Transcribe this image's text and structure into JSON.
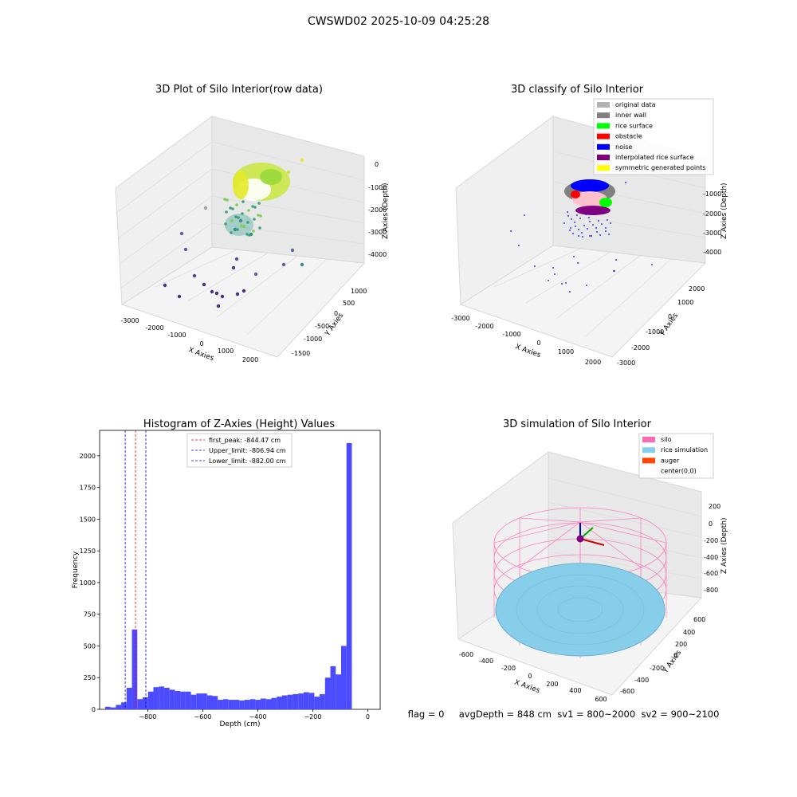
{
  "suptitle": "CWSWD02 2025-10-09 04:25:28",
  "status_line": "flag = 0     avgDepth = 848 cm  sv1 = 800~2000  sv2 = 900~2100",
  "chart_data": [
    {
      "type": "scatter3d",
      "title": "3D Plot of Silo Interior(row data)",
      "xlabel": "X Axies",
      "ylabel": "Y Axies",
      "zlabel": "Z Axies (Depth)",
      "xticks": [
        "-3000",
        "-2000",
        "-1000",
        "0",
        "1000",
        "2000"
      ],
      "yticks": [
        "-1500",
        "-1000",
        "-500",
        "0",
        "500",
        "1000"
      ],
      "zticks": [
        "0",
        "-1000",
        "-2000",
        "-3000",
        "-4000"
      ],
      "colormap": "viridis"
    },
    {
      "type": "scatter3d",
      "title": "3D classify of Silo Interior",
      "xlabel": "X Axies",
      "ylabel": "Y Axies",
      "zlabel": "Z Axies (Depth)",
      "xticks": [
        "-3000",
        "-2000",
        "-1000",
        "0",
        "1000",
        "2000"
      ],
      "yticks": [
        "-3000",
        "-2000",
        "-1000",
        "0",
        "1000",
        "2000"
      ],
      "zticks": [
        "-1000",
        "-2000",
        "-3000",
        "-4000"
      ],
      "legend_position": "top-right",
      "legend": [
        {
          "label": "original data",
          "color": "#b3b3b3"
        },
        {
          "label": "inner wall",
          "color": "#808080"
        },
        {
          "label": "rice surface",
          "color": "#00ff00"
        },
        {
          "label": "obstacle",
          "color": "#ff0000"
        },
        {
          "label": "noise",
          "color": "#0000ff"
        },
        {
          "label": "interpolated rice surface",
          "color": "#800080"
        },
        {
          "label": "symmetric generated points",
          "color": "#ffff00"
        }
      ]
    },
    {
      "type": "bar",
      "title": "Histogram of Z-Axies (Height) Values",
      "xlabel": "Depth (cm)",
      "ylabel": "Frequency",
      "xlim": [
        -975,
        45
      ],
      "ylim": [
        0,
        2200
      ],
      "xticks": [
        -800,
        -600,
        -400,
        -200,
        0
      ],
      "yticks": [
        0,
        250,
        500,
        750,
        1000,
        1250,
        1500,
        1750,
        2000
      ],
      "bar_color": "#4b4bff",
      "bin_width": 19.5,
      "bins_start": [
        -955,
        -935.5,
        -916,
        -896.5,
        -877,
        -857.5,
        -838,
        -818.5,
        -799,
        -779.5,
        -760,
        -740.5,
        -721,
        -701.5,
        -682,
        -662.5,
        -643,
        -623.5,
        -604,
        -584.5,
        -565,
        -545.5,
        -526,
        -506.5,
        -487,
        -467.5,
        -448,
        -428.5,
        -409,
        -389.5,
        -370,
        -350.5,
        -331,
        -311.5,
        -292,
        -272.5,
        -253,
        -233.5,
        -214,
        -194.5,
        -175,
        -155.5,
        -136,
        -116.5,
        -97,
        -77.5,
        -58,
        -38.5,
        -19.5
      ],
      "values": [
        20,
        15,
        35,
        55,
        170,
        630,
        80,
        95,
        140,
        175,
        180,
        170,
        155,
        145,
        140,
        140,
        115,
        125,
        125,
        110,
        105,
        75,
        80,
        75,
        75,
        70,
        75,
        80,
        75,
        85,
        80,
        90,
        100,
        110,
        115,
        120,
        125,
        135,
        130,
        100,
        120,
        250,
        340,
        275,
        500,
        2100,
        0,
        0,
        0
      ],
      "lines": [
        {
          "label": "first_peak: -844.47 cm",
          "x": -844.47,
          "color": "#ff0000"
        },
        {
          "label": "Upper_limit: -806.94 cm",
          "x": -806.94,
          "color": "#0000ff"
        },
        {
          "label": "Lower_limit: -882.00 cm",
          "x": -882.0,
          "color": "#0000ff"
        }
      ]
    },
    {
      "type": "surface3d",
      "title": "3D simulation of Silo Interior",
      "xlabel": "X Axies",
      "ylabel": "Y Axies",
      "zlabel": "Z Axies (Depth)",
      "xticks": [
        "-600",
        "-400",
        "-200",
        "0",
        "200",
        "400",
        "600"
      ],
      "yticks": [
        "-600",
        "-400",
        "-200",
        "0",
        "200",
        "400",
        "600"
      ],
      "zticks": [
        "200",
        "0",
        "-200",
        "-400",
        "-600",
        "-800"
      ],
      "legend_position": "top-right",
      "legend": [
        {
          "label": "silo",
          "color": "#ff69b4"
        },
        {
          "label": "rice simulation",
          "color": "#87ceeb"
        },
        {
          "label": "auger",
          "color": "#ff4500"
        },
        {
          "label": "center(0,0)",
          "color": "#ffffff"
        }
      ]
    }
  ]
}
